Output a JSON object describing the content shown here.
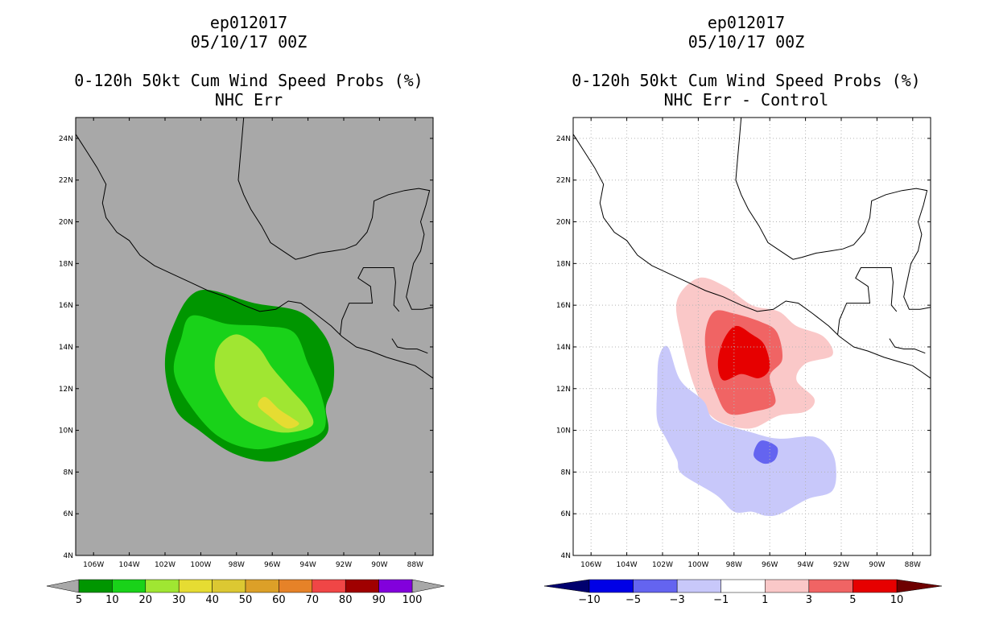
{
  "chart_data": [
    {
      "type": "contour-map",
      "title_lines": [
        "ep012017",
        "05/10/17 00Z",
        "0-120h 50kt Cum Wind Speed Probs (%)",
        "NHC Err"
      ],
      "x_axis": {
        "ticks": [
          "106W",
          "104W",
          "102W",
          "100W",
          "98W",
          "96W",
          "94W",
          "92W",
          "90W",
          "88W"
        ]
      },
      "y_axis": {
        "ticks": [
          "4N",
          "6N",
          "8N",
          "10N",
          "12N",
          "14N",
          "16N",
          "18N",
          "20N",
          "22N",
          "24N"
        ]
      },
      "region": {
        "lon_min": -107,
        "lon_max": -87,
        "lat_min": 4,
        "lat_max": 25
      },
      "background_color": "#a8a8a8",
      "colorbar": {
        "levels": [
          "5",
          "10",
          "20",
          "30",
          "40",
          "50",
          "60",
          "70",
          "80",
          "90",
          "100"
        ],
        "colors": [
          "#009600",
          "#19d219",
          "#a0e632",
          "#e6dc32",
          "#dcc832",
          "#dca028",
          "#e68228",
          "#f04646",
          "#a00000",
          "#8200dc"
        ],
        "end_color": "#a8a8a8"
      },
      "contours": [
        {
          "level": 5,
          "color": "#009600",
          "points": [
            [
              -100.1,
              16.7
            ],
            [
              -97.0,
              16.1
            ],
            [
              -94.5,
              15.7
            ],
            [
              -93.2,
              14.7
            ],
            [
              -92.6,
              13.5
            ],
            [
              -92.6,
              12.1
            ],
            [
              -93.0,
              11.1
            ],
            [
              -92.9,
              9.9
            ],
            [
              -94.0,
              9.1
            ],
            [
              -96.0,
              8.5
            ],
            [
              -98.2,
              8.9
            ],
            [
              -100.1,
              10.0
            ],
            [
              -101.4,
              11.0
            ],
            [
              -102.0,
              13.0
            ],
            [
              -101.6,
              14.9
            ]
          ]
        },
        {
          "level": 10,
          "color": "#19d219",
          "points": [
            [
              -100.5,
              15.5
            ],
            [
              -98.5,
              15.1
            ],
            [
              -96.5,
              15.0
            ],
            [
              -94.8,
              14.7
            ],
            [
              -94.0,
              13.2
            ],
            [
              -93.3,
              11.8
            ],
            [
              -93.0,
              10.5
            ],
            [
              -93.4,
              9.8
            ],
            [
              -95.0,
              9.4
            ],
            [
              -97.0,
              9.1
            ],
            [
              -99.0,
              9.7
            ],
            [
              -100.6,
              11.2
            ],
            [
              -101.5,
              12.8
            ],
            [
              -101.1,
              14.4
            ]
          ]
        },
        {
          "level": 20,
          "color": "#a0e632",
          "points": [
            [
              -98.0,
              14.6
            ],
            [
              -96.8,
              14.0
            ],
            [
              -96.0,
              13.0
            ],
            [
              -95.0,
              12.0
            ],
            [
              -94.0,
              11.0
            ],
            [
              -93.8,
              10.2
            ],
            [
              -95.5,
              9.9
            ],
            [
              -97.5,
              10.5
            ],
            [
              -98.6,
              11.6
            ],
            [
              -99.2,
              12.8
            ],
            [
              -99.0,
              14.0
            ]
          ]
        },
        {
          "level": 30,
          "color": "#e6dc32",
          "points": [
            [
              -96.4,
              11.6
            ],
            [
              -95.6,
              11.0
            ],
            [
              -94.9,
              10.6
            ],
            [
              -94.5,
              10.3
            ],
            [
              -95.2,
              10.1
            ],
            [
              -96.2,
              10.7
            ],
            [
              -96.8,
              11.2
            ]
          ]
        }
      ]
    },
    {
      "type": "contour-map",
      "title_lines": [
        "ep012017",
        "05/10/17 00Z",
        "0-120h 50kt Cum Wind Speed Probs (%)",
        "NHC Err - Control"
      ],
      "x_axis": {
        "ticks": [
          "106W",
          "104W",
          "102W",
          "100W",
          "98W",
          "96W",
          "94W",
          "92W",
          "90W",
          "88W"
        ]
      },
      "y_axis": {
        "ticks": [
          "4N",
          "6N",
          "8N",
          "10N",
          "12N",
          "14N",
          "16N",
          "18N",
          "20N",
          "22N",
          "24N"
        ]
      },
      "region": {
        "lon_min": -107,
        "lon_max": -87,
        "lat_min": 4,
        "lat_max": 25
      },
      "background_color": "#ffffff",
      "colorbar": {
        "levels": [
          "-10",
          "-5",
          "-3",
          "-1",
          "1",
          "3",
          "5",
          "10"
        ],
        "colors": [
          "#0000e6",
          "#6464f0",
          "#c8c8fa",
          "#ffffff",
          "#fac8c8",
          "#f06464",
          "#e60000"
        ],
        "end_colors": [
          "#00006e",
          "#6e0000"
        ]
      },
      "contours": [
        {
          "level": 1,
          "color": "#fac8c8",
          "points": [
            [
              -100.0,
              17.3
            ],
            [
              -98.5,
              16.9
            ],
            [
              -97.0,
              16.0
            ],
            [
              -95.5,
              15.7
            ],
            [
              -94.5,
              15.0
            ],
            [
              -93.0,
              14.5
            ],
            [
              -92.5,
              13.6
            ],
            [
              -94.0,
              13.2
            ],
            [
              -94.5,
              12.4
            ],
            [
              -93.5,
              11.5
            ],
            [
              -94.0,
              10.9
            ],
            [
              -95.5,
              10.7
            ],
            [
              -97.0,
              10.1
            ],
            [
              -98.5,
              10.3
            ],
            [
              -99.5,
              10.9
            ],
            [
              -100.3,
              12.3
            ],
            [
              -100.9,
              14.3
            ],
            [
              -101.2,
              16.2
            ]
          ]
        },
        {
          "level": 3,
          "color": "#f06464",
          "points": [
            [
              -99.1,
              15.7
            ],
            [
              -98.0,
              15.6
            ],
            [
              -96.5,
              15.2
            ],
            [
              -95.6,
              14.7
            ],
            [
              -95.3,
              13.4
            ],
            [
              -96.0,
              12.6
            ],
            [
              -95.7,
              11.3
            ],
            [
              -96.9,
              10.9
            ],
            [
              -98.3,
              10.8
            ],
            [
              -99.0,
              11.8
            ],
            [
              -99.5,
              13.2
            ],
            [
              -99.6,
              14.7
            ]
          ]
        },
        {
          "level": 5,
          "color": "#e60000",
          "points": [
            [
              -97.9,
              15.0
            ],
            [
              -97.0,
              14.6
            ],
            [
              -96.3,
              14.1
            ],
            [
              -96.0,
              13.0
            ],
            [
              -96.6,
              12.5
            ],
            [
              -97.6,
              12.7
            ],
            [
              -98.6,
              12.4
            ],
            [
              -98.9,
              13.2
            ],
            [
              -98.6,
              14.3
            ]
          ]
        },
        {
          "level": -1,
          "color": "#c8c8fa",
          "points": [
            [
              -101.7,
              14.0
            ],
            [
              -101.0,
              12.4
            ],
            [
              -99.7,
              11.4
            ],
            [
              -99.1,
              10.5
            ],
            [
              -97.0,
              9.9
            ],
            [
              -95.5,
              9.6
            ],
            [
              -93.6,
              9.7
            ],
            [
              -92.7,
              9.2
            ],
            [
              -92.3,
              8.3
            ],
            [
              -92.5,
              7.1
            ],
            [
              -93.9,
              6.7
            ],
            [
              -95.4,
              6.0
            ],
            [
              -96.2,
              5.9
            ],
            [
              -97.0,
              6.1
            ],
            [
              -98.0,
              6.1
            ],
            [
              -99.0,
              6.9
            ],
            [
              -100.9,
              7.9
            ],
            [
              -101.2,
              8.6
            ],
            [
              -101.8,
              9.6
            ],
            [
              -102.3,
              10.5
            ],
            [
              -102.3,
              12.0
            ],
            [
              -102.2,
              13.5
            ]
          ]
        },
        {
          "level": -3,
          "color": "#6464f0",
          "points": [
            [
              -96.5,
              9.5
            ],
            [
              -95.6,
              9.2
            ],
            [
              -95.7,
              8.6
            ],
            [
              -96.3,
              8.4
            ],
            [
              -96.9,
              8.8
            ]
          ]
        }
      ]
    }
  ]
}
